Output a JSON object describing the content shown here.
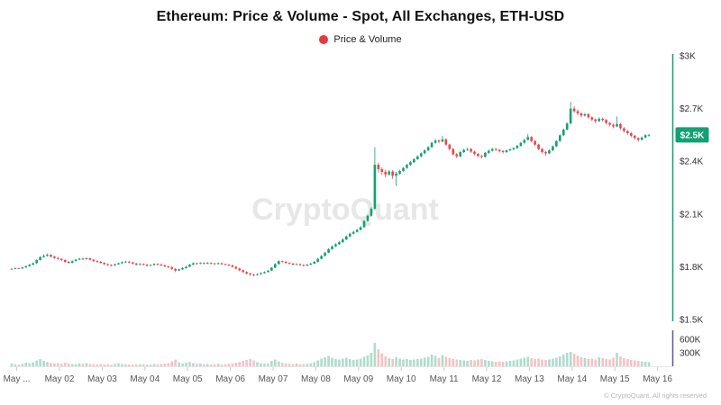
{
  "header": {
    "title": "Ethereum: Price & Volume - Spot, All Exchanges, ETH-USD",
    "legend": {
      "label": "Price & Volume",
      "dot_color": "#e8383d"
    }
  },
  "watermark": "CryptoQuant",
  "footer": {
    "copyright": "© CryptoQuant. All rights reserved"
  },
  "price_badge": {
    "label": "$2.5K",
    "color": "#12a074",
    "text_color": "#ffffff"
  },
  "colors": {
    "up": "#12a074",
    "down": "#e8444e",
    "volume_up": "#aedccd",
    "volume_down": "#f5c2c7",
    "price_axis": "#12a074",
    "volume_axis": "#6355a4",
    "tick_text": "#333333",
    "x_text": "#565656",
    "baseline": "#e6e6e6",
    "watermark": "#d8d8d8"
  },
  "chart_data": {
    "type": "candlestick_with_volume",
    "title": "Ethereum: Price & Volume - Spot, All Exchanges, ETH-USD",
    "symbol": "ETH-USD",
    "interval": "2h",
    "price_ylim": [
      1500,
      3000
    ],
    "price_ticks": [
      {
        "label": "$3K",
        "value": 3000
      },
      {
        "label": "$2.7K",
        "value": 2700
      },
      {
        "label": "$2.4K",
        "value": 2400
      },
      {
        "label": "$2.1K",
        "value": 2100
      },
      {
        "label": "$1.8K",
        "value": 1800
      },
      {
        "label": "$1.5K",
        "value": 1500
      }
    ],
    "volume_ticks": [
      {
        "label": "600K",
        "value": 600
      },
      {
        "label": "300K",
        "value": 300
      }
    ],
    "x_ticks": [
      "May ...",
      "May 02",
      "May 03",
      "May 04",
      "May 05",
      "May 06",
      "May 07",
      "May 08",
      "May 09",
      "May 10",
      "May 11",
      "May 12",
      "May 13",
      "May 14",
      "May 15",
      "May 16"
    ],
    "last_price": 2550,
    "candles_format": [
      "open",
      "high",
      "low",
      "close",
      "volume_k"
    ],
    "candles_per_day": 12,
    "candles": [
      [
        1785,
        1791,
        1782,
        1788,
        60
      ],
      [
        1788,
        1796,
        1786,
        1792,
        45
      ],
      [
        1792,
        1795,
        1786,
        1790,
        40
      ],
      [
        1790,
        1800,
        1788,
        1796,
        55
      ],
      [
        1796,
        1807,
        1794,
        1803,
        80
      ],
      [
        1803,
        1816,
        1801,
        1812,
        70
      ],
      [
        1812,
        1824,
        1809,
        1820,
        90
      ],
      [
        1820,
        1842,
        1818,
        1838,
        130
      ],
      [
        1838,
        1860,
        1836,
        1855,
        160
      ],
      [
        1855,
        1872,
        1852,
        1862,
        120
      ],
      [
        1862,
        1875,
        1858,
        1868,
        95
      ],
      [
        1868,
        1872,
        1852,
        1858,
        75
      ],
      [
        1858,
        1863,
        1845,
        1850,
        60
      ],
      [
        1850,
        1856,
        1840,
        1845,
        70
      ],
      [
        1845,
        1849,
        1832,
        1838,
        55
      ],
      [
        1838,
        1842,
        1822,
        1828,
        80
      ],
      [
        1828,
        1833,
        1816,
        1822,
        65
      ],
      [
        1822,
        1836,
        1820,
        1832,
        50
      ],
      [
        1832,
        1845,
        1830,
        1840,
        45
      ],
      [
        1840,
        1851,
        1837,
        1846,
        60
      ],
      [
        1846,
        1852,
        1838,
        1843,
        55
      ],
      [
        1843,
        1853,
        1840,
        1848,
        70
      ],
      [
        1848,
        1852,
        1836,
        1840,
        50
      ],
      [
        1840,
        1844,
        1828,
        1832,
        45
      ],
      [
        1832,
        1837,
        1823,
        1828,
        40
      ],
      [
        1828,
        1832,
        1817,
        1822,
        50
      ],
      [
        1822,
        1826,
        1810,
        1815,
        40
      ],
      [
        1815,
        1819,
        1805,
        1810,
        45
      ],
      [
        1810,
        1815,
        1803,
        1808,
        35
      ],
      [
        1808,
        1818,
        1805,
        1814,
        55
      ],
      [
        1814,
        1824,
        1811,
        1820,
        65
      ],
      [
        1820,
        1830,
        1817,
        1826,
        50
      ],
      [
        1826,
        1834,
        1822,
        1829,
        45
      ],
      [
        1829,
        1833,
        1819,
        1824,
        40
      ],
      [
        1824,
        1828,
        1813,
        1818,
        35
      ],
      [
        1818,
        1822,
        1807,
        1812,
        45
      ],
      [
        1812,
        1821,
        1809,
        1816,
        50
      ],
      [
        1816,
        1820,
        1807,
        1812,
        45
      ],
      [
        1812,
        1816,
        1801,
        1806,
        40
      ],
      [
        1806,
        1814,
        1803,
        1810,
        35
      ],
      [
        1810,
        1820,
        1807,
        1816,
        50
      ],
      [
        1816,
        1820,
        1808,
        1813,
        45
      ],
      [
        1813,
        1817,
        1803,
        1808,
        55
      ],
      [
        1808,
        1812,
        1797,
        1802,
        60
      ],
      [
        1802,
        1806,
        1792,
        1798,
        70
      ],
      [
        1798,
        1802,
        1782,
        1788,
        110
      ],
      [
        1788,
        1792,
        1770,
        1778,
        150
      ],
      [
        1778,
        1790,
        1775,
        1785,
        90
      ],
      [
        1785,
        1797,
        1782,
        1792,
        60
      ],
      [
        1792,
        1805,
        1789,
        1800,
        80
      ],
      [
        1800,
        1817,
        1798,
        1812,
        95
      ],
      [
        1812,
        1825,
        1809,
        1820,
        70
      ],
      [
        1820,
        1824,
        1812,
        1817,
        55
      ],
      [
        1817,
        1826,
        1814,
        1821,
        60
      ],
      [
        1821,
        1825,
        1813,
        1818,
        45
      ],
      [
        1818,
        1827,
        1815,
        1822,
        50
      ],
      [
        1822,
        1826,
        1814,
        1819,
        40
      ],
      [
        1819,
        1823,
        1811,
        1816,
        45
      ],
      [
        1816,
        1825,
        1813,
        1820,
        55
      ],
      [
        1820,
        1824,
        1810,
        1815,
        40
      ],
      [
        1815,
        1819,
        1807,
        1812,
        45
      ],
      [
        1812,
        1816,
        1803,
        1808,
        55
      ],
      [
        1808,
        1812,
        1795,
        1800,
        65
      ],
      [
        1800,
        1804,
        1785,
        1790,
        80
      ],
      [
        1790,
        1794,
        1774,
        1780,
        95
      ],
      [
        1780,
        1784,
        1764,
        1770,
        120
      ],
      [
        1770,
        1774,
        1756,
        1762,
        140
      ],
      [
        1762,
        1766,
        1748,
        1756,
        160
      ],
      [
        1756,
        1760,
        1745,
        1753,
        130
      ],
      [
        1753,
        1763,
        1750,
        1758,
        90
      ],
      [
        1758,
        1769,
        1755,
        1764,
        70
      ],
      [
        1764,
        1774,
        1761,
        1770,
        60
      ],
      [
        1770,
        1782,
        1767,
        1778,
        55
      ],
      [
        1778,
        1799,
        1775,
        1795,
        120
      ],
      [
        1795,
        1820,
        1792,
        1815,
        150
      ],
      [
        1815,
        1837,
        1812,
        1832,
        110
      ],
      [
        1832,
        1836,
        1823,
        1828,
        80
      ],
      [
        1828,
        1832,
        1817,
        1822,
        65
      ],
      [
        1822,
        1826,
        1813,
        1818,
        55
      ],
      [
        1818,
        1822,
        1807,
        1812,
        50
      ],
      [
        1812,
        1820,
        1809,
        1815,
        60
      ],
      [
        1815,
        1819,
        1805,
        1810,
        45
      ],
      [
        1810,
        1814,
        1801,
        1806,
        50
      ],
      [
        1806,
        1816,
        1803,
        1812,
        55
      ],
      [
        1812,
        1822,
        1809,
        1818,
        65
      ],
      [
        1818,
        1833,
        1815,
        1828,
        90
      ],
      [
        1828,
        1850,
        1825,
        1845,
        130
      ],
      [
        1845,
        1867,
        1842,
        1862,
        170
      ],
      [
        1862,
        1885,
        1859,
        1880,
        200
      ],
      [
        1880,
        1906,
        1877,
        1900,
        230
      ],
      [
        1900,
        1921,
        1896,
        1916,
        190
      ],
      [
        1916,
        1934,
        1912,
        1928,
        160
      ],
      [
        1928,
        1946,
        1924,
        1940,
        150
      ],
      [
        1940,
        1961,
        1936,
        1955,
        170
      ],
      [
        1955,
        1978,
        1951,
        1972,
        190
      ],
      [
        1972,
        1994,
        1968,
        1988,
        160
      ],
      [
        1988,
        2006,
        1984,
        1998,
        140
      ],
      [
        1998,
        2016,
        1994,
        2010,
        150
      ],
      [
        2010,
        2031,
        2006,
        2025,
        170
      ],
      [
        2025,
        2066,
        2021,
        2060,
        210
      ],
      [
        2060,
        2097,
        2055,
        2090,
        240
      ],
      [
        2090,
        2138,
        2085,
        2130,
        300
      ],
      [
        2130,
        2480,
        2122,
        2380,
        520
      ],
      [
        2380,
        2392,
        2336,
        2355,
        380
      ],
      [
        2355,
        2366,
        2322,
        2340,
        290
      ],
      [
        2340,
        2352,
        2308,
        2325,
        220
      ],
      [
        2325,
        2350,
        2318,
        2342,
        180
      ],
      [
        2342,
        2350,
        2300,
        2318,
        160
      ],
      [
        2318,
        2340,
        2260,
        2330,
        200
      ],
      [
        2330,
        2352,
        2324,
        2345,
        170
      ],
      [
        2345,
        2368,
        2340,
        2362,
        150
      ],
      [
        2362,
        2386,
        2357,
        2380,
        160
      ],
      [
        2380,
        2401,
        2375,
        2395,
        140
      ],
      [
        2395,
        2418,
        2390,
        2412,
        150
      ],
      [
        2412,
        2434,
        2407,
        2428,
        160
      ],
      [
        2428,
        2451,
        2423,
        2445,
        170
      ],
      [
        2445,
        2468,
        2440,
        2462,
        190
      ],
      [
        2462,
        2486,
        2457,
        2480,
        210
      ],
      [
        2480,
        2511,
        2475,
        2505,
        260
      ],
      [
        2505,
        2528,
        2500,
        2518,
        230
      ],
      [
        2518,
        2524,
        2502,
        2512,
        180
      ],
      [
        2512,
        2545,
        2508,
        2525,
        250
      ],
      [
        2525,
        2530,
        2488,
        2495,
        210
      ],
      [
        2495,
        2500,
        2462,
        2470,
        180
      ],
      [
        2470,
        2476,
        2432,
        2440,
        160
      ],
      [
        2440,
        2448,
        2418,
        2428,
        150
      ],
      [
        2428,
        2458,
        2424,
        2452,
        140
      ],
      [
        2452,
        2471,
        2447,
        2465,
        130
      ],
      [
        2465,
        2476,
        2458,
        2470,
        120
      ],
      [
        2470,
        2475,
        2448,
        2455,
        140
      ],
      [
        2455,
        2460,
        2434,
        2442,
        130
      ],
      [
        2442,
        2447,
        2422,
        2430,
        150
      ],
      [
        2430,
        2436,
        2416,
        2425,
        160
      ],
      [
        2425,
        2453,
        2421,
        2448,
        140
      ],
      [
        2448,
        2466,
        2443,
        2460,
        120
      ],
      [
        2460,
        2476,
        2455,
        2470,
        110
      ],
      [
        2470,
        2475,
        2457,
        2465,
        100
      ],
      [
        2465,
        2470,
        2450,
        2458,
        110
      ],
      [
        2458,
        2463,
        2444,
        2452,
        100
      ],
      [
        2452,
        2467,
        2448,
        2462,
        110
      ],
      [
        2462,
        2473,
        2457,
        2468,
        120
      ],
      [
        2468,
        2480,
        2463,
        2475,
        130
      ],
      [
        2475,
        2493,
        2470,
        2488,
        150
      ],
      [
        2488,
        2510,
        2483,
        2505,
        170
      ],
      [
        2505,
        2527,
        2500,
        2522,
        190
      ],
      [
        2522,
        2556,
        2518,
        2538,
        210
      ],
      [
        2538,
        2543,
        2508,
        2515,
        180
      ],
      [
        2515,
        2520,
        2487,
        2495,
        160
      ],
      [
        2495,
        2500,
        2462,
        2470,
        170
      ],
      [
        2470,
        2476,
        2444,
        2452,
        150
      ],
      [
        2452,
        2460,
        2432,
        2445,
        140
      ],
      [
        2445,
        2467,
        2441,
        2462,
        150
      ],
      [
        2462,
        2490,
        2458,
        2485,
        170
      ],
      [
        2485,
        2520,
        2481,
        2515,
        190
      ],
      [
        2515,
        2553,
        2511,
        2548,
        220
      ],
      [
        2548,
        2586,
        2544,
        2580,
        260
      ],
      [
        2580,
        2621,
        2576,
        2615,
        300
      ],
      [
        2615,
        2738,
        2610,
        2700,
        320
      ],
      [
        2700,
        2712,
        2676,
        2685,
        280
      ],
      [
        2685,
        2695,
        2662,
        2672,
        240
      ],
      [
        2672,
        2680,
        2650,
        2660,
        200
      ],
      [
        2660,
        2675,
        2654,
        2668,
        180
      ],
      [
        2668,
        2673,
        2642,
        2650,
        160
      ],
      [
        2650,
        2656,
        2628,
        2638,
        170
      ],
      [
        2638,
        2644,
        2616,
        2628,
        150
      ],
      [
        2628,
        2650,
        2623,
        2642,
        200
      ],
      [
        2642,
        2648,
        2626,
        2635,
        180
      ],
      [
        2635,
        2641,
        2608,
        2618,
        160
      ],
      [
        2618,
        2624,
        2598,
        2608,
        150
      ],
      [
        2608,
        2614,
        2588,
        2598,
        190
      ],
      [
        2598,
        2655,
        2594,
        2612,
        300
      ],
      [
        2612,
        2618,
        2578,
        2588,
        220
      ],
      [
        2588,
        2594,
        2563,
        2572,
        180
      ],
      [
        2572,
        2578,
        2551,
        2560,
        160
      ],
      [
        2560,
        2566,
        2536,
        2545,
        140
      ],
      [
        2545,
        2551,
        2523,
        2532,
        130
      ],
      [
        2532,
        2538,
        2512,
        2522,
        120
      ],
      [
        2522,
        2541,
        2518,
        2535,
        110
      ],
      [
        2535,
        2554,
        2531,
        2548,
        100
      ],
      [
        2548,
        2556,
        2540,
        2550,
        90
      ]
    ]
  }
}
